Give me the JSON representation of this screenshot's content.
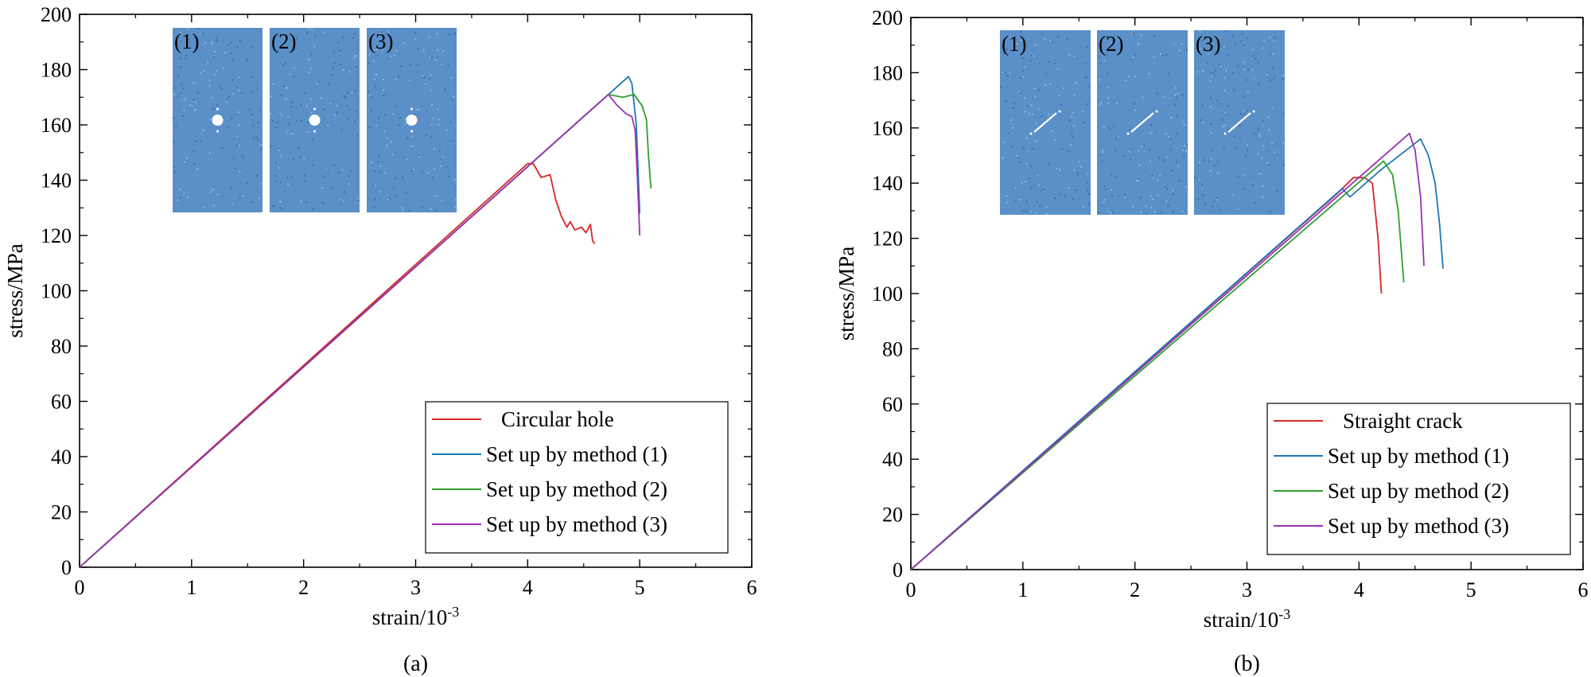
{
  "chart_data": [
    {
      "type": "line",
      "panel_label": "(a)",
      "xlabel_base": "strain/10",
      "xlabel_exp": "-3",
      "ylabel": "stress/MPa",
      "xlim": [
        0,
        6
      ],
      "ylim": [
        0,
        200
      ],
      "xticks": [
        0,
        1,
        2,
        3,
        4,
        5,
        6
      ],
      "yticks": [
        0,
        20,
        40,
        60,
        80,
        100,
        120,
        140,
        160,
        180,
        200
      ],
      "legend_position": "bottom-right",
      "inset_labels": [
        "(1)",
        "(2)",
        "(3)"
      ],
      "inset_feature": "circular-hole",
      "series": [
        {
          "name": "Circular hole",
          "color": "#d62728",
          "x": [
            0,
            4.0,
            4.05,
            4.12,
            4.2,
            4.25,
            4.3,
            4.35,
            4.38,
            4.42,
            4.48,
            4.52,
            4.56,
            4.58,
            4.6
          ],
          "y": [
            0,
            146,
            146,
            141,
            142,
            133,
            127,
            123,
            125,
            122,
            123,
            121,
            124,
            118,
            117
          ]
        },
        {
          "name": "Set up by method (1)",
          "color": "#1f77b4",
          "x": [
            0,
            4.9,
            4.93,
            4.97,
            5.0
          ],
          "y": [
            0,
            177.5,
            175,
            160,
            128
          ]
        },
        {
          "name": "Set up by method (2)",
          "color": "#2ca02c",
          "x": [
            0,
            4.72,
            4.85,
            4.95,
            5.02,
            5.06,
            5.08,
            5.1
          ],
          "y": [
            0,
            171,
            170,
            171,
            167,
            162,
            148,
            137
          ]
        },
        {
          "name": "Set up by method (3)",
          "color": "#9b30b4",
          "x": [
            0,
            4.72,
            4.8,
            4.88,
            4.93,
            4.96,
            4.98,
            5.0
          ],
          "y": [
            0,
            171,
            167,
            164,
            163,
            158,
            140,
            120
          ]
        }
      ]
    },
    {
      "type": "line",
      "panel_label": "(b)",
      "xlabel_base": "strain/10",
      "xlabel_exp": "-3",
      "ylabel": "stress/MPa",
      "xlim": [
        0,
        6
      ],
      "ylim": [
        0,
        200
      ],
      "xticks": [
        0,
        1,
        2,
        3,
        4,
        5,
        6
      ],
      "yticks": [
        0,
        20,
        40,
        60,
        80,
        100,
        120,
        140,
        160,
        180,
        200
      ],
      "legend_position": "bottom-right",
      "inset_labels": [
        "(1)",
        "(2)",
        "(3)"
      ],
      "inset_feature": "straight-crack",
      "series": [
        {
          "name": "Straight crack",
          "color": "#d62728",
          "x": [
            0,
            3.8,
            3.95,
            4.05,
            4.12,
            4.17,
            4.2
          ],
          "y": [
            0,
            136,
            142,
            142,
            140,
            120,
            100
          ]
        },
        {
          "name": "Set up by method (1)",
          "color": "#1f77b4",
          "x": [
            0,
            3.85,
            3.92,
            4.2,
            4.55,
            4.62,
            4.68,
            4.72,
            4.75
          ],
          "y": [
            0,
            138,
            135,
            145,
            156,
            150,
            140,
            125,
            109
          ]
        },
        {
          "name": "Set up by method (2)",
          "color": "#2ca02c",
          "x": [
            0,
            4.22,
            4.3,
            4.35,
            4.4
          ],
          "y": [
            0,
            148,
            143,
            130,
            104
          ]
        },
        {
          "name": "Set up by method (3)",
          "color": "#9b30b4",
          "x": [
            0,
            4.45,
            4.5,
            4.55,
            4.58
          ],
          "y": [
            0,
            158,
            152,
            135,
            110
          ]
        }
      ]
    }
  ]
}
